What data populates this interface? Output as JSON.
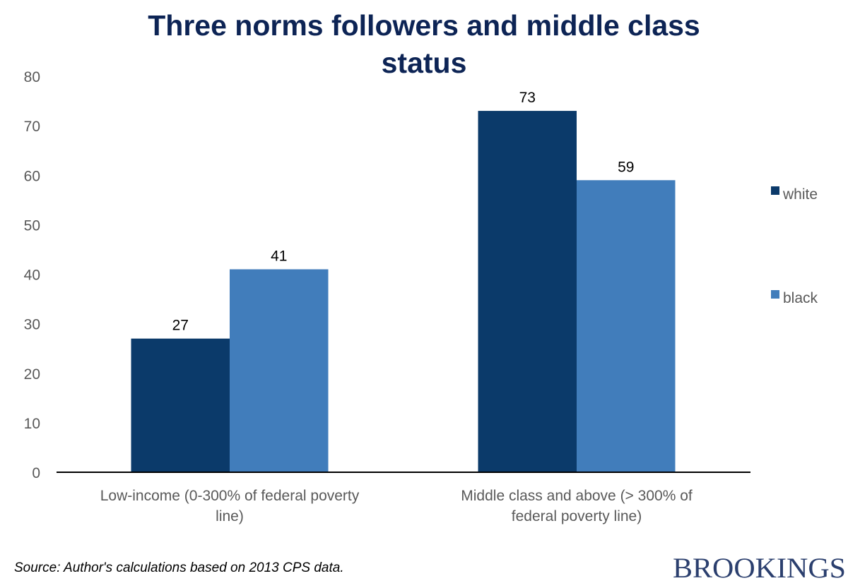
{
  "chart_data": {
    "type": "bar",
    "title": "Three norms followers and middle class status",
    "title_lines": [
      "Three norms followers and middle class",
      "status"
    ],
    "categories": [
      "Low-income (0-300% of federal poverty line)",
      "Middle class and above (> 300% of federal poverty line)"
    ],
    "category_lines": [
      [
        "Low-income (0-300% of federal poverty",
        "line)"
      ],
      [
        "Middle class and above (> 300% of",
        "federal poverty line)"
      ]
    ],
    "series": [
      {
        "name": "white",
        "values": [
          27,
          73
        ],
        "color": "#0b3a6a"
      },
      {
        "name": "black",
        "values": [
          41,
          59
        ],
        "color": "#417dbb"
      }
    ],
    "ylim": [
      0,
      80
    ],
    "yticks": [
      0,
      10,
      20,
      30,
      40,
      50,
      60,
      70,
      80
    ],
    "xlabel": "",
    "ylabel": "",
    "grid": false,
    "legend_placement": "right"
  },
  "footer": {
    "source": "Source: Author's calculations based on 2013 CPS data.",
    "logo": "BROOKINGS"
  }
}
